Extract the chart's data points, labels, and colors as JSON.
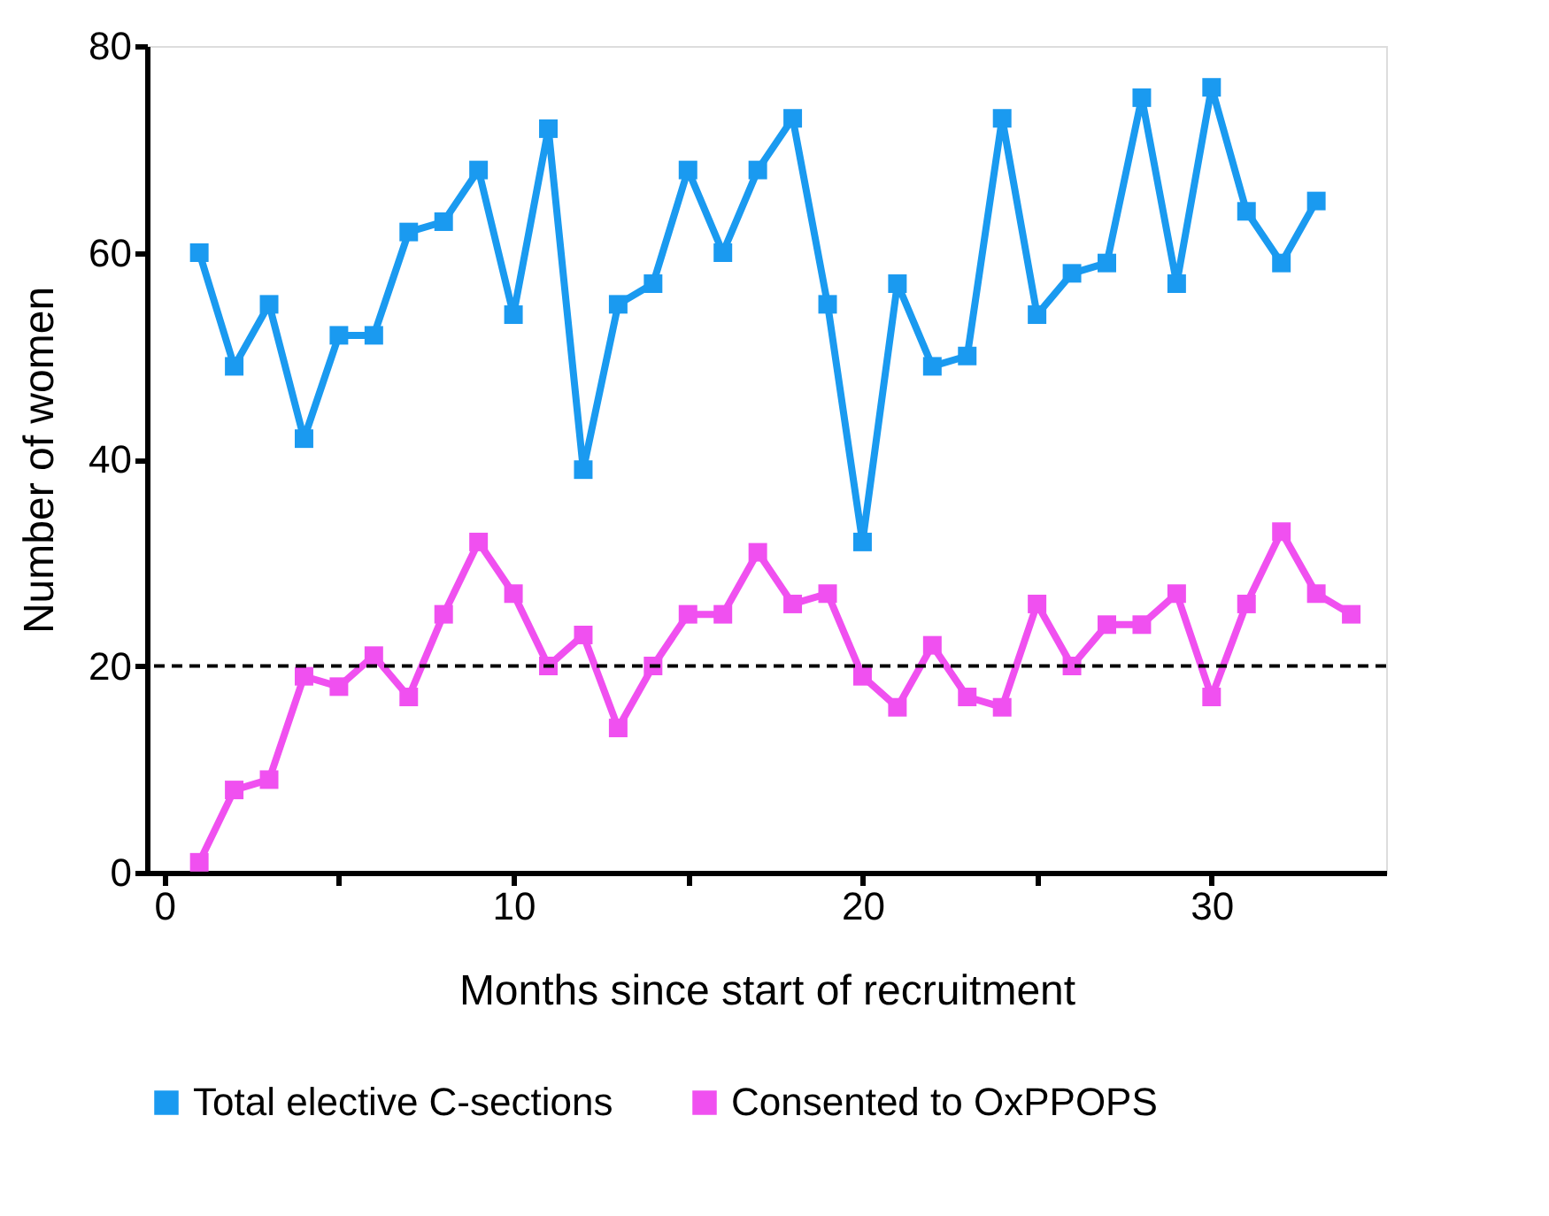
{
  "chart_data": {
    "type": "line",
    "xlabel": "Months since start of recruitment",
    "ylabel": "Number of women",
    "x": [
      1,
      2,
      3,
      4,
      5,
      6,
      7,
      8,
      9,
      10,
      11,
      12,
      13,
      14,
      15,
      16,
      17,
      18,
      19,
      20,
      21,
      22,
      23,
      24,
      25,
      26,
      27,
      28,
      29,
      30,
      31,
      32,
      33,
      34
    ],
    "series": [
      {
        "name": "Total elective C-sections",
        "color": "#1a9af0",
        "values": [
          60,
          49,
          55,
          42,
          52,
          52,
          62,
          63,
          68,
          54,
          72,
          39,
          55,
          57,
          68,
          60,
          68,
          73,
          55,
          32,
          57,
          49,
          50,
          73,
          54,
          58,
          59,
          75,
          57,
          76,
          64,
          59,
          65,
          null
        ]
      },
      {
        "name": "Consented to OxPPOPS",
        "color": "#f050f0",
        "values": [
          1,
          8,
          9,
          19,
          18,
          21,
          17,
          25,
          32,
          27,
          20,
          23,
          14,
          20,
          25,
          25,
          31,
          26,
          27,
          19,
          16,
          22,
          17,
          16,
          26,
          20,
          24,
          24,
          27,
          17,
          26,
          33,
          27,
          25
        ]
      }
    ],
    "xlim": [
      -0.5,
      35
    ],
    "xticks": [
      0,
      {
        "value": 5,
        "label": null
      },
      10,
      {
        "value": 15,
        "label": null
      },
      20,
      {
        "value": 25,
        "label": null
      },
      30
    ],
    "ylim": [
      0,
      80
    ],
    "yticks": [
      0,
      20,
      40,
      60,
      80
    ],
    "ref_lines": [
      {
        "axis": "y",
        "value": 20,
        "color": "#000000",
        "line_style": "dashed"
      }
    ],
    "marker": "square",
    "line_style": "solid",
    "grid": false,
    "legend": "bottom"
  }
}
